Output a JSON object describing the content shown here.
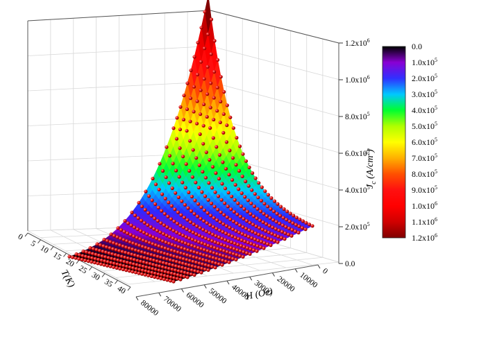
{
  "chart_data": {
    "type": "surface-scatter-3d",
    "x_axis": {
      "label": "T(K)",
      "ticks": [
        "0",
        "5",
        "10",
        "15",
        "20",
        "25",
        "30",
        "35",
        "40"
      ],
      "range": [
        0,
        40
      ]
    },
    "y_axis": {
      "label": "H (Oe)",
      "ticks": [
        "0",
        "10000",
        "20000",
        "30000",
        "40000",
        "50000",
        "60000",
        "70000",
        "80000"
      ],
      "range": [
        0,
        80000
      ]
    },
    "z_axis": {
      "label_main": "J",
      "label_sub": "c",
      "label_units": " (A/cm",
      "label_sup": "2",
      "label_close": ")",
      "ticks": [
        {
          "m": "0.0",
          "e": ""
        },
        {
          "m": "2.0x10",
          "e": "5"
        },
        {
          "m": "4.0x10",
          "e": "5"
        },
        {
          "m": "6.0x10",
          "e": "5"
        },
        {
          "m": "8.0x10",
          "e": "5"
        },
        {
          "m": "1.0x10",
          "e": "6"
        },
        {
          "m": "1.2x10",
          "e": "6"
        }
      ],
      "range": [
        0,
        1200000
      ]
    },
    "colorbar": {
      "levels": [
        {
          "m": "0.0",
          "e": ""
        },
        {
          "m": "1.0x10",
          "e": "5"
        },
        {
          "m": "2.0x10",
          "e": "5"
        },
        {
          "m": "3.0x10",
          "e": "5"
        },
        {
          "m": "4.0x10",
          "e": "5"
        },
        {
          "m": "5.0x10",
          "e": "5"
        },
        {
          "m": "6.0x10",
          "e": "5"
        },
        {
          "m": "7.0x10",
          "e": "5"
        },
        {
          "m": "8.0x10",
          "e": "5"
        },
        {
          "m": "9.0x10",
          "e": "5"
        },
        {
          "m": "1.0x10",
          "e": "6"
        },
        {
          "m": "1.1x10",
          "e": "6"
        },
        {
          "m": "1.2x10",
          "e": "6"
        }
      ],
      "colors": [
        "#000000",
        "#8a00d4",
        "#3030ff",
        "#00c8ff",
        "#00ff30",
        "#b0ff00",
        "#ffff00",
        "#ffb000",
        "#ff5000",
        "#ff1010",
        "#ff0000",
        "#d00000",
        "#800000"
      ]
    },
    "surface_model": {
      "description_free": true,
      "peak_value": 1200000,
      "peak_at": {
        "T": 0,
        "H": 0
      },
      "T_samples": 40,
      "H_samples": 33
    },
    "grid": true,
    "marker_color": "#e01010"
  }
}
